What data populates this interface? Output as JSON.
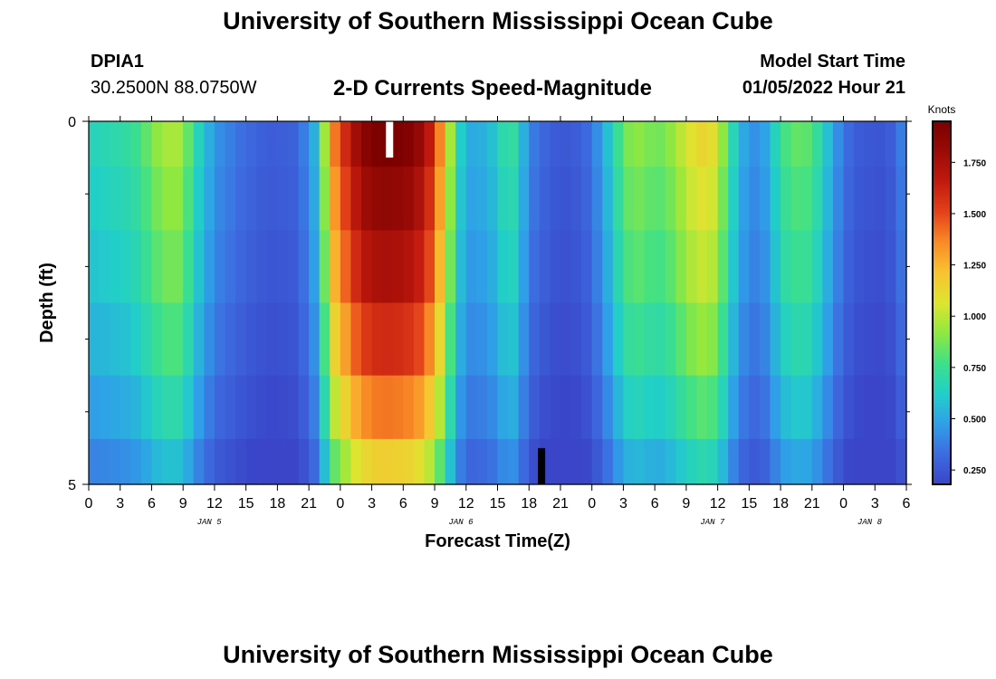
{
  "header": {
    "title": "University of Southern Mississippi Ocean Cube",
    "station_id": "DPIA1",
    "station_coords": "30.2500N  88.0750W",
    "subtitle": "2-D Currents Speed-Magnitude",
    "start_label": "Model Start Time",
    "start_value": "01/05/2022 Hour 21"
  },
  "footer": {
    "title": "University of Southern Mississippi Ocean Cube"
  },
  "chart_data": {
    "type": "heatmap",
    "title": "2-D Currents Speed-Magnitude",
    "xlabel": "Forecast Time(Z)",
    "ylabel": "Depth (ft)",
    "colorbar_label": "Knots",
    "colorbar_ticks": [
      "0.250",
      "0.500",
      "0.750",
      "1.000",
      "1.250",
      "1.500",
      "1.750"
    ],
    "colorbar_range": [
      0.18,
      1.95
    ],
    "x_ticks": [
      "0",
      "3",
      "6",
      "9",
      "12",
      "15",
      "18",
      "21",
      "0",
      "3",
      "6",
      "9",
      "12",
      "15",
      "18",
      "21",
      "0",
      "3",
      "6",
      "9",
      "12",
      "15",
      "18",
      "21",
      "0",
      "3",
      "6"
    ],
    "date_labels": [
      {
        "label": "JAN 5",
        "hour_index": 11.5
      },
      {
        "label": "JAN 6",
        "hour_index": 35.5
      },
      {
        "label": "JAN 7",
        "hour_index": 59.5
      },
      {
        "label": "JAN 8",
        "hour_index": 74.5
      }
    ],
    "y_ticks": [
      "0",
      "5"
    ],
    "y_range": [
      0,
      5
    ],
    "x_range_hours": [
      0,
      78
    ],
    "depth_levels": [
      0.25,
      1.0,
      2.0,
      3.0,
      4.0,
      4.75
    ],
    "surface_profile": [
      [
        0,
        0.65
      ],
      [
        2,
        0.68
      ],
      [
        3,
        0.7
      ],
      [
        4,
        0.72
      ],
      [
        5,
        0.78
      ],
      [
        6,
        0.88
      ],
      [
        7,
        0.95
      ],
      [
        8,
        0.98
      ],
      [
        9,
        0.95
      ],
      [
        10,
        0.72
      ],
      [
        11,
        0.58
      ],
      [
        12,
        0.45
      ],
      [
        13,
        0.4
      ],
      [
        15,
        0.32
      ],
      [
        17,
        0.27
      ],
      [
        19,
        0.28
      ],
      [
        20,
        0.3
      ],
      [
        21,
        0.45
      ],
      [
        22,
        0.6
      ],
      [
        23,
        1.3
      ],
      [
        24,
        1.5
      ],
      [
        25,
        1.7
      ],
      [
        26,
        1.85
      ],
      [
        27,
        1.93
      ],
      [
        28,
        1.95
      ],
      [
        30,
        1.93
      ],
      [
        31,
        1.88
      ],
      [
        32,
        1.78
      ],
      [
        33,
        1.55
      ],
      [
        34,
        1.2
      ],
      [
        35,
        0.72
      ],
      [
        36,
        0.52
      ],
      [
        37,
        0.5
      ],
      [
        38,
        0.55
      ],
      [
        39,
        0.6
      ],
      [
        40,
        0.78
      ],
      [
        41,
        0.65
      ],
      [
        42,
        0.4
      ],
      [
        43,
        0.33
      ],
      [
        44,
        0.28
      ],
      [
        45,
        0.25
      ],
      [
        46,
        0.26
      ],
      [
        47,
        0.28
      ],
      [
        48,
        0.35
      ],
      [
        49,
        0.5
      ],
      [
        50,
        0.65
      ],
      [
        51,
        0.85
      ],
      [
        52,
        0.92
      ],
      [
        53,
        0.9
      ],
      [
        54,
        0.85
      ],
      [
        55,
        0.88
      ],
      [
        56,
        0.95
      ],
      [
        57,
        1.05
      ],
      [
        58,
        1.12
      ],
      [
        59,
        1.15
      ],
      [
        60,
        1.05
      ],
      [
        61,
        0.78
      ],
      [
        62,
        0.55
      ],
      [
        63,
        0.45
      ],
      [
        64,
        0.42
      ],
      [
        65,
        0.55
      ],
      [
        66,
        0.75
      ],
      [
        67,
        0.82
      ],
      [
        68,
        0.85
      ],
      [
        69,
        0.8
      ],
      [
        70,
        0.65
      ],
      [
        71,
        0.5
      ],
      [
        72,
        0.35
      ],
      [
        73,
        0.28
      ],
      [
        74,
        0.25
      ],
      [
        76,
        0.24
      ],
      [
        77,
        0.3
      ],
      [
        78,
        0.45
      ]
    ],
    "depth_factors": [
      1.0,
      0.95,
      0.9,
      0.82,
      0.72,
      0.6
    ],
    "depth_floors": [
      0.0,
      0.0,
      0.0,
      0.0,
      0.0,
      0.0
    ],
    "markers": [
      {
        "hour": 28.7,
        "depth_from": 0,
        "depth_to": 0.5,
        "color": "#ffffff"
      },
      {
        "hour": 43.2,
        "depth_from": 4.5,
        "depth_to": 5.0,
        "color": "#000000"
      }
    ],
    "colorscale": [
      "#3a45c8",
      "#3d6ce0",
      "#2fa0e8",
      "#22cfc8",
      "#3ee08a",
      "#8fe840",
      "#dde530",
      "#f7c431",
      "#f98b26",
      "#e3421a",
      "#c21a0e",
      "#9a0b06",
      "#7a0000"
    ]
  }
}
